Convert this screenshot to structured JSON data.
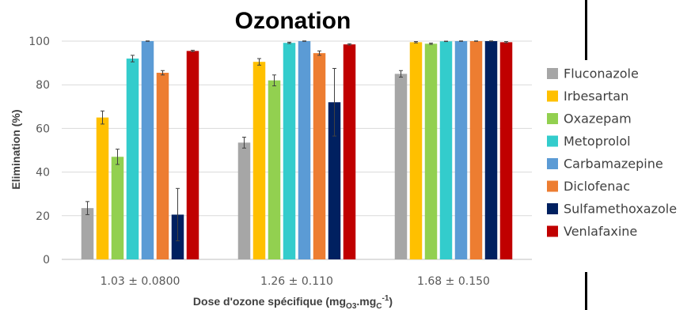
{
  "chart_data": {
    "type": "bar",
    "title": "Ozonation",
    "xlabel": "Dose d'ozone spécifique (mgO3.mgC-1)",
    "xlabel_parts": {
      "pre": "Dose d'ozone spécifique (mg",
      "sub1": "O3",
      "mid": ".mg",
      "sub2": "C",
      "sup": "-1",
      "post": ")"
    },
    "ylabel": "Elimination (%)",
    "ylim": [
      0,
      100
    ],
    "yticks": [
      "0",
      "20",
      "40",
      "60",
      "80",
      "100"
    ],
    "categories": [
      "1.03 ± 0.0800",
      "1.26 ± 0.110",
      "1.68 ± 0.150"
    ],
    "legend_position": "right",
    "grid": true,
    "series": [
      {
        "name": "Fluconazole",
        "color": "#a6a6a6",
        "values": [
          23.5,
          53.5,
          85.0
        ],
        "errors": [
          3.0,
          2.5,
          1.5
        ]
      },
      {
        "name": "Irbesartan",
        "color": "#ffc000",
        "values": [
          65.0,
          90.5,
          99.5
        ],
        "errors": [
          3.0,
          1.5,
          0.3
        ]
      },
      {
        "name": "Oxazepam",
        "color": "#92d050",
        "values": [
          47.0,
          82.0,
          98.8
        ],
        "errors": [
          3.5,
          2.5,
          0.3
        ]
      },
      {
        "name": "Metoprolol",
        "color": "#33cccc",
        "values": [
          92.0,
          99.2,
          99.9
        ],
        "errors": [
          1.5,
          0.3,
          0.1
        ]
      },
      {
        "name": "Carbamazepine",
        "color": "#5b9bd5",
        "values": [
          100.0,
          100.0,
          100.0
        ],
        "errors": [
          0.1,
          0.1,
          0.1
        ]
      },
      {
        "name": "Diclofenac",
        "color": "#ed7d31",
        "values": [
          85.5,
          94.5,
          100.0
        ],
        "errors": [
          1.0,
          1.0,
          0.1
        ]
      },
      {
        "name": "Sulfamethoxazole",
        "color": "#002060",
        "values": [
          20.5,
          72.0,
          100.0
        ],
        "errors": [
          12.0,
          15.5,
          0.1
        ]
      },
      {
        "name": "Venlafaxine",
        "color": "#c00000",
        "values": [
          95.5,
          98.5,
          99.5
        ],
        "errors": [
          0.3,
          0.3,
          0.3
        ]
      }
    ]
  }
}
